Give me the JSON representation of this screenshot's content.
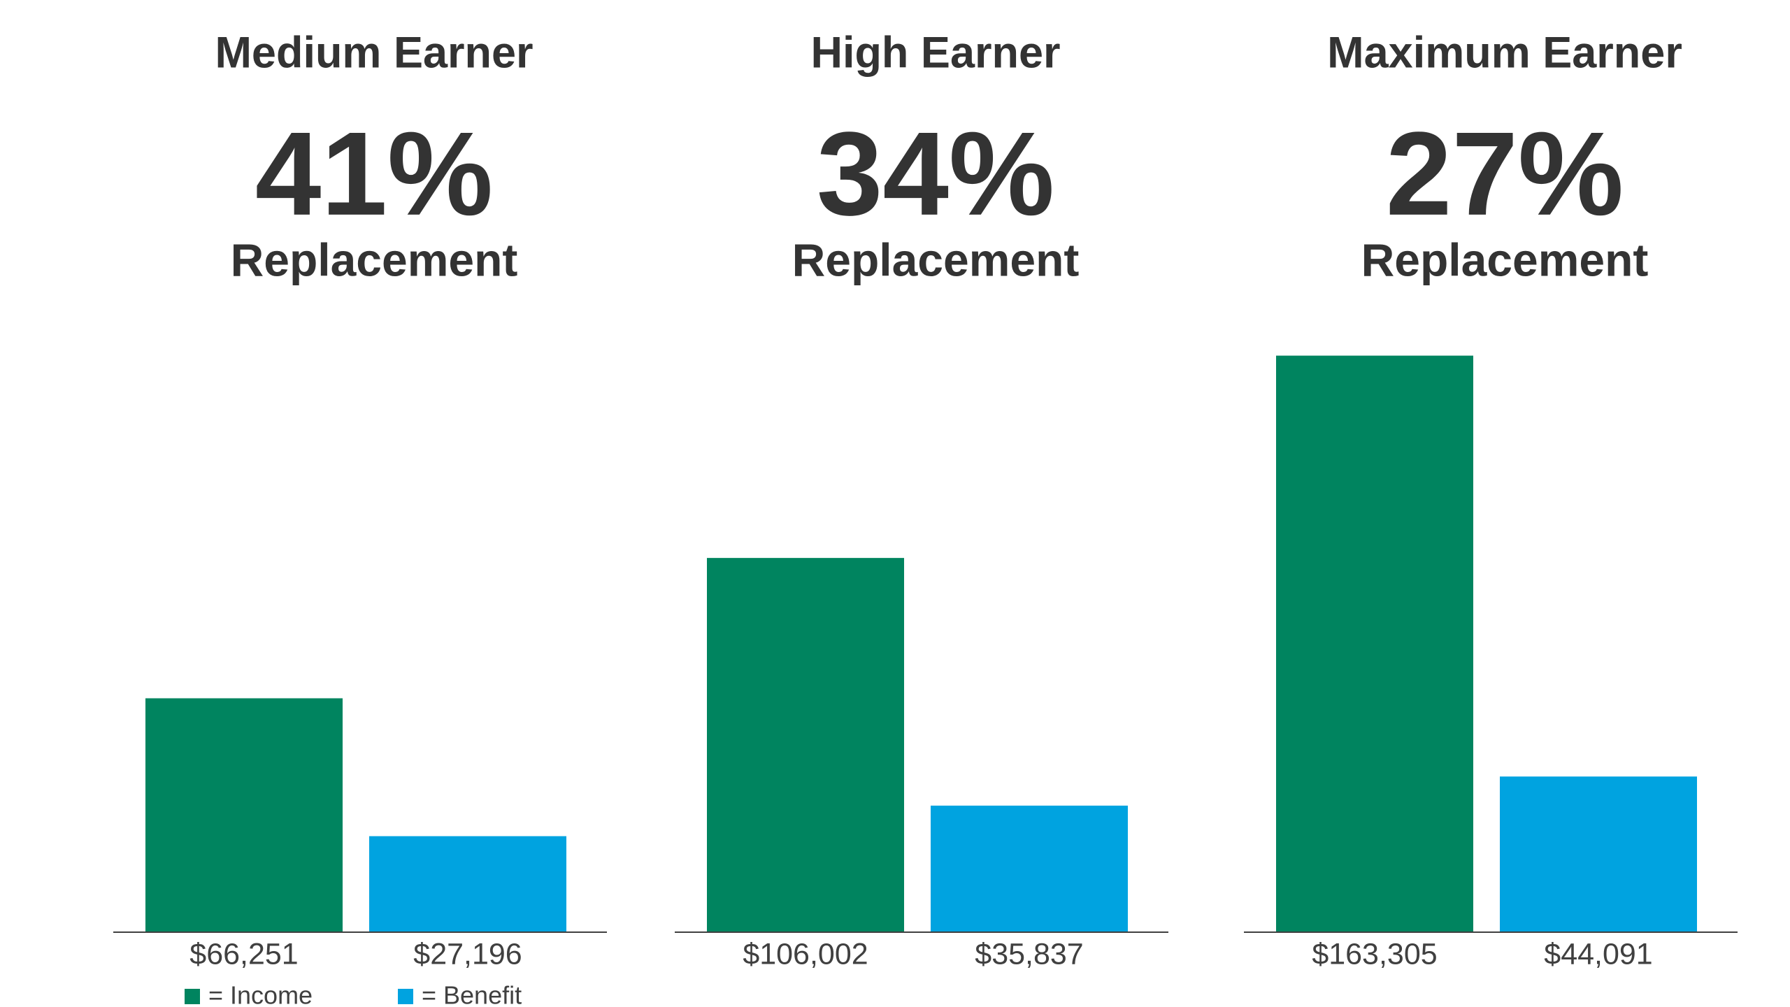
{
  "chart_data": [
    {
      "type": "bar",
      "title": "Medium Earner",
      "annotation": "41%",
      "subtitle": "Replacement",
      "series": [
        {
          "name": "= Income",
          "color": "#00845f",
          "values": [
            66251
          ],
          "value_labels": [
            "$66,251"
          ]
        },
        {
          "name": "= Benefit",
          "color": "#00a3e0",
          "values": [
            27196
          ],
          "value_labels": [
            "$27,196"
          ]
        }
      ],
      "ylim": [
        0,
        165000
      ],
      "legend": "bottom-left"
    },
    {
      "type": "bar",
      "title": "High Earner",
      "annotation": "34%",
      "subtitle": "Replacement",
      "series": [
        {
          "name": "= Income",
          "color": "#00845f",
          "values": [
            106002
          ],
          "value_labels": [
            "$106,002"
          ]
        },
        {
          "name": "= Benefit",
          "color": "#00a3e0",
          "values": [
            35837
          ],
          "value_labels": [
            "$35,837"
          ]
        }
      ],
      "ylim": [
        0,
        165000
      ],
      "legend": false
    },
    {
      "type": "bar",
      "title": "Maximum Earner",
      "annotation": "27%",
      "subtitle": "Replacement",
      "series": [
        {
          "name": "= Income",
          "color": "#00845f",
          "values": [
            163305
          ],
          "value_labels": [
            "$163,305"
          ]
        },
        {
          "name": "= Benefit",
          "color": "#00a3e0",
          "values": [
            44091
          ],
          "value_labels": [
            "$44,091"
          ]
        }
      ],
      "ylim": [
        0,
        165000
      ],
      "legend": false
    }
  ]
}
